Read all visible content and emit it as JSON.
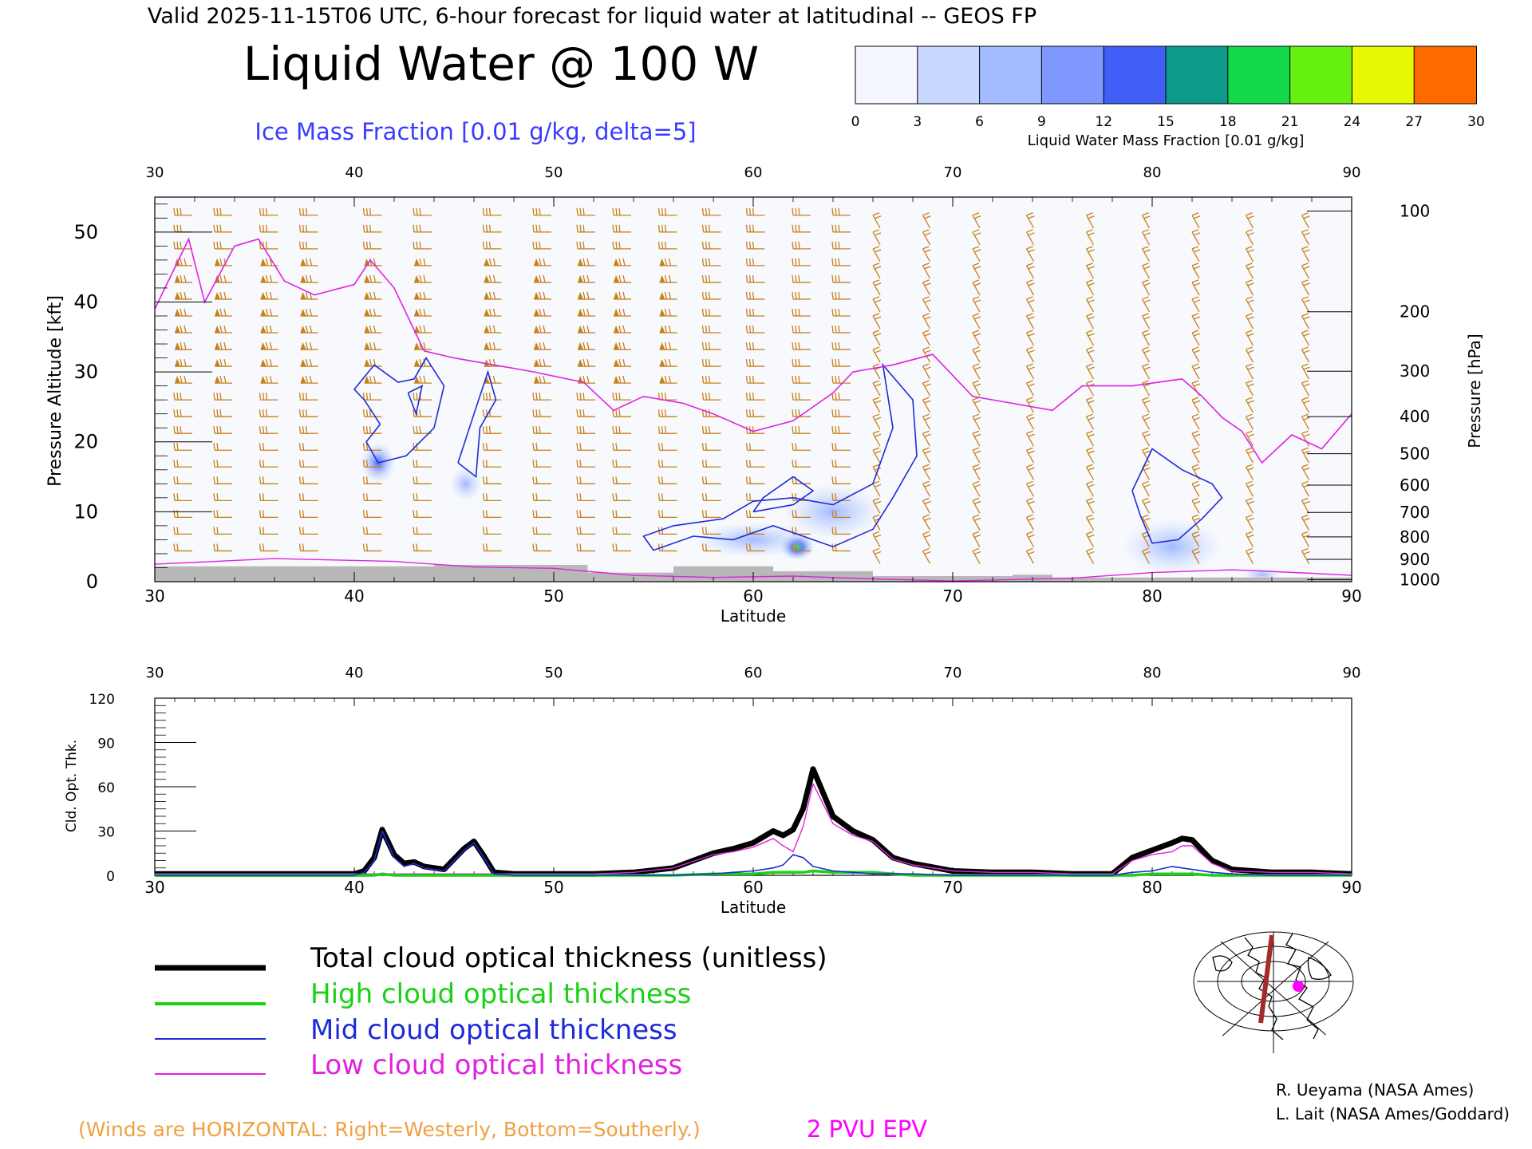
{
  "header": {
    "valid_line": "Valid 2025-11-15T06 UTC, 6-hour forecast for liquid water at latitudinal -- GEOS FP",
    "title": "Liquid Water @ 100 W",
    "subtitle": "Ice Mass Fraction [0.01 g/kg, delta=5]"
  },
  "colorbar": {
    "label": "Liquid Water Mass Fraction [0.01 g/kg]",
    "ticks": [
      "0",
      "3",
      "6",
      "9",
      "12",
      "15",
      "18",
      "21",
      "24",
      "27",
      "30"
    ],
    "colors": [
      "#f4f7ff",
      "#c8d8ff",
      "#a4bcff",
      "#7e98ff",
      "#3f5ff6",
      "#0d9a8a",
      "#12d84a",
      "#66f010",
      "#e8f802",
      "#ffbf00",
      "#ff6a00"
    ]
  },
  "chart_data": [
    {
      "type": "heatmap",
      "title": "Liquid Water @ 100 W",
      "xlabel": "Latitude",
      "ylabel": "Pressure Altitude [kft]",
      "ylabel_right": "Pressure [hPa]",
      "xlim": [
        30,
        90
      ],
      "ylim": [
        0,
        55
      ],
      "x_ticks": [
        "30",
        "40",
        "50",
        "60",
        "70",
        "80",
        "90"
      ],
      "y_ticks": [
        "0",
        "10",
        "20",
        "30",
        "40",
        "50"
      ],
      "pressure_ticks": [
        {
          "label": "100",
          "kft": 53.0
        },
        {
          "label": "200",
          "kft": 38.6
        },
        {
          "label": "300",
          "kft": 30.1
        },
        {
          "label": "400",
          "kft": 23.6
        },
        {
          "label": "500",
          "kft": 18.3
        },
        {
          "label": "600",
          "kft": 13.8
        },
        {
          "label": "700",
          "kft": 9.9
        },
        {
          "label": "800",
          "kft": 6.4
        },
        {
          "label": "900",
          "kft": 3.2
        },
        {
          "label": "1000",
          "kft": 0.3
        }
      ],
      "liquid_water_blobs": [
        {
          "lat": 41.2,
          "kft": 17,
          "value": 9,
          "spread": [
            0.9,
            3
          ]
        },
        {
          "lat": 45.6,
          "kft": 14,
          "value": 6,
          "spread": [
            0.8,
            2.5
          ]
        },
        {
          "lat": 62.2,
          "kft": 5,
          "value": 16,
          "spread": [
            0.9,
            2
          ]
        },
        {
          "lat": 60.0,
          "kft": 6,
          "value": 5,
          "spread": [
            3,
            2.5
          ]
        },
        {
          "lat": 64.0,
          "kft": 10,
          "value": 4,
          "spread": [
            2.5,
            4
          ]
        },
        {
          "lat": 81.0,
          "kft": 5,
          "value": 5,
          "spread": [
            2.5,
            4
          ]
        },
        {
          "lat": 85.5,
          "kft": 1,
          "value": 5,
          "spread": [
            1,
            1
          ]
        }
      ],
      "epv_2pvu_line": [
        [
          30,
          39
        ],
        [
          31.7,
          49
        ],
        [
          32.5,
          40
        ],
        [
          34,
          48
        ],
        [
          35.2,
          49
        ],
        [
          36.5,
          43
        ],
        [
          38,
          41
        ],
        [
          40,
          42.5
        ],
        [
          40.8,
          46
        ],
        [
          42,
          42
        ],
        [
          43.5,
          33
        ],
        [
          45,
          32
        ],
        [
          47,
          31
        ],
        [
          49,
          30
        ],
        [
          51.5,
          28.5
        ],
        [
          53,
          24.5
        ],
        [
          54.5,
          26.5
        ],
        [
          56.5,
          25.5
        ],
        [
          58,
          24
        ],
        [
          60,
          21.5
        ],
        [
          62,
          23
        ],
        [
          64,
          27
        ],
        [
          65,
          30
        ],
        [
          67,
          31
        ],
        [
          69,
          32.5
        ],
        [
          71,
          26.5
        ],
        [
          73,
          25.5
        ],
        [
          75,
          24.5
        ],
        [
          76.5,
          28
        ],
        [
          79,
          28
        ],
        [
          81.5,
          29
        ],
        [
          82.5,
          26.5
        ],
        [
          83.5,
          23.5
        ],
        [
          84.5,
          21.5
        ],
        [
          85.5,
          17
        ],
        [
          87,
          21
        ],
        [
          88.5,
          19
        ],
        [
          90,
          24
        ]
      ],
      "ice_contours": [
        [
          [
            41.3,
            22.5
          ],
          [
            40.5,
            26
          ],
          [
            40,
            27.5
          ],
          [
            41,
            31
          ],
          [
            42.2,
            28.5
          ],
          [
            43,
            29
          ],
          [
            43.6,
            32
          ],
          [
            44.5,
            28
          ],
          [
            44,
            22
          ],
          [
            42.6,
            18
          ],
          [
            41.2,
            17
          ],
          [
            40.6,
            20
          ],
          [
            41.3,
            22.5
          ]
        ],
        [
          [
            42.7,
            27
          ],
          [
            43.4,
            28
          ],
          [
            43.1,
            24
          ],
          [
            42.7,
            27
          ]
        ],
        [
          [
            45.2,
            17
          ],
          [
            46,
            24
          ],
          [
            46.7,
            30
          ],
          [
            47.1,
            26
          ],
          [
            46.3,
            22
          ],
          [
            46.1,
            15
          ],
          [
            45.2,
            17
          ]
        ],
        [
          [
            62,
            12
          ],
          [
            64,
            11
          ],
          [
            66,
            14
          ],
          [
            67,
            22
          ],
          [
            66.5,
            31
          ],
          [
            68,
            26
          ],
          [
            68.2,
            18
          ],
          [
            67,
            12
          ],
          [
            66,
            7.5
          ],
          [
            64,
            5
          ],
          [
            62.5,
            6.5
          ],
          [
            61,
            8
          ],
          [
            59,
            6
          ],
          [
            57,
            6.5
          ],
          [
            55,
            4.5
          ],
          [
            54.5,
            6.5
          ],
          [
            56,
            8
          ],
          [
            58.5,
            9
          ],
          [
            60,
            11.5
          ],
          [
            62,
            12
          ]
        ],
        [
          [
            60,
            10
          ],
          [
            62,
            11
          ],
          [
            63,
            13
          ],
          [
            62,
            15
          ],
          [
            60.5,
            12
          ],
          [
            60,
            10
          ]
        ],
        [
          [
            79,
            13
          ],
          [
            80,
            19
          ],
          [
            81.5,
            16
          ],
          [
            83,
            14
          ],
          [
            83.5,
            12
          ],
          [
            82.5,
            9
          ],
          [
            81.3,
            6
          ],
          [
            80,
            5.5
          ],
          [
            79.4,
            9.5
          ],
          [
            79,
            13
          ]
        ]
      ],
      "surface_terrain": [
        {
          "lat_from": 30,
          "lat_to": 44,
          "kft": 2.2
        },
        {
          "lat_from": 44,
          "lat_to": 51.7,
          "kft": 2.4
        },
        {
          "lat_from": 51.7,
          "lat_to": 56,
          "kft": 1.3
        },
        {
          "lat_from": 56,
          "lat_to": 61,
          "kft": 2.2
        },
        {
          "lat_from": 61,
          "lat_to": 66,
          "kft": 1.5
        },
        {
          "lat_from": 66,
          "lat_to": 73,
          "kft": 0.8
        },
        {
          "lat_from": 73,
          "lat_to": 75,
          "kft": 1.0
        },
        {
          "lat_from": 75,
          "lat_to": 90,
          "kft": 0.6
        }
      ],
      "wind_barb_columns": [
        31,
        33,
        35.3,
        37.3,
        40.5,
        43,
        46.5,
        49,
        51.2,
        53,
        55.3,
        57.5,
        59.7,
        62,
        64,
        66,
        68.5,
        71,
        73.7,
        76.7,
        79.5,
        82,
        84.7,
        87.5
      ]
    },
    {
      "type": "line",
      "xlabel": "Latitude",
      "ylabel": "Cld. Opt. Thk.",
      "xlim": [
        30,
        90
      ],
      "ylim": [
        0,
        120
      ],
      "x_ticks": [
        "30",
        "40",
        "50",
        "60",
        "70",
        "80",
        "90"
      ],
      "y_ticks": [
        "0",
        "30",
        "60",
        "90",
        "120"
      ],
      "x": [
        30,
        38,
        40,
        40.5,
        41,
        41.4,
        42,
        42.5,
        43,
        43.5,
        44.5,
        45.5,
        46,
        46.5,
        47,
        48,
        50,
        52,
        54,
        56,
        58,
        59,
        60,
        61,
        61.5,
        62,
        62.5,
        63,
        64,
        65,
        66,
        67,
        68,
        70,
        72,
        74,
        76,
        78,
        79,
        80,
        81,
        81.5,
        82,
        83,
        84,
        86,
        88,
        90
      ],
      "series": [
        {
          "name": "Total cloud optical thickness (unitless)",
          "color": "#000000",
          "values": [
            1,
            1,
            1,
            3,
            12,
            31,
            14,
            8,
            9,
            6,
            4,
            18,
            23,
            13,
            2,
            1,
            1,
            1,
            2,
            5,
            15,
            18,
            22,
            30,
            27,
            31,
            45,
            72,
            40,
            30,
            24,
            12,
            8,
            3,
            2,
            2,
            1,
            1,
            12,
            17,
            22,
            25,
            24,
            10,
            4,
            2,
            2,
            1
          ]
        },
        {
          "name": "High cloud optical thickness",
          "color": "#1bd114",
          "values": [
            0,
            0,
            0,
            0,
            0,
            1,
            0,
            0,
            0,
            0,
            0,
            0,
            0,
            0,
            0,
            0,
            0,
            0,
            0,
            0,
            1,
            1,
            1,
            2,
            2,
            2,
            2,
            3,
            2,
            2,
            2,
            1,
            0,
            0,
            0,
            0,
            0,
            0,
            0,
            1,
            1,
            1,
            1,
            0,
            0,
            0,
            0,
            0
          ]
        },
        {
          "name": "Mid cloud optical thickness",
          "color": "#1e2bd6",
          "values": [
            0,
            0,
            0,
            2,
            10,
            30,
            12,
            6,
            8,
            5,
            3,
            17,
            22,
            12,
            1,
            0,
            0,
            0,
            0,
            0,
            1,
            2,
            3,
            5,
            7,
            14,
            12,
            6,
            3,
            2,
            1,
            1,
            1,
            0,
            0,
            0,
            0,
            0,
            2,
            3,
            6,
            5,
            4,
            2,
            1,
            0,
            0,
            0
          ]
        },
        {
          "name": "Low cloud optical thickness",
          "color": "#e022e0",
          "values": [
            1,
            1,
            1,
            1,
            1,
            1,
            1,
            1,
            1,
            1,
            1,
            1,
            1,
            1,
            1,
            1,
            1,
            1,
            2,
            5,
            14,
            16,
            19,
            25,
            20,
            16,
            33,
            62,
            35,
            27,
            23,
            11,
            7,
            3,
            2,
            2,
            1,
            1,
            10,
            14,
            16,
            20,
            20,
            8,
            3,
            2,
            2,
            1
          ]
        }
      ]
    }
  ],
  "legend": [
    {
      "label": "Total cloud optical thickness (unitless)",
      "color": "#000000"
    },
    {
      "label": "High cloud optical thickness",
      "color": "#1bd114"
    },
    {
      "label": "Mid cloud optical thickness",
      "color": "#1e2bd6"
    },
    {
      "label": "Low cloud optical thickness",
      "color": "#e022e0"
    }
  ],
  "colors": {
    "wind_barb": "#c8801a",
    "ice_contour": "#1e2bd6",
    "epv_line": "#e022e0",
    "terrain": "#b8b8b8"
  },
  "footer": {
    "winds_note": "(Winds are HORIZONTAL: Right=Westerly, Bottom=Southerly.)",
    "epv_label": "2 PVU EPV",
    "credit1": "R. Ueyama (NASA Ames)",
    "credit2": "L. Lait (NASA Ames/Goddard)"
  },
  "inset_map": {
    "icon": "polar-projection-map-icon"
  }
}
